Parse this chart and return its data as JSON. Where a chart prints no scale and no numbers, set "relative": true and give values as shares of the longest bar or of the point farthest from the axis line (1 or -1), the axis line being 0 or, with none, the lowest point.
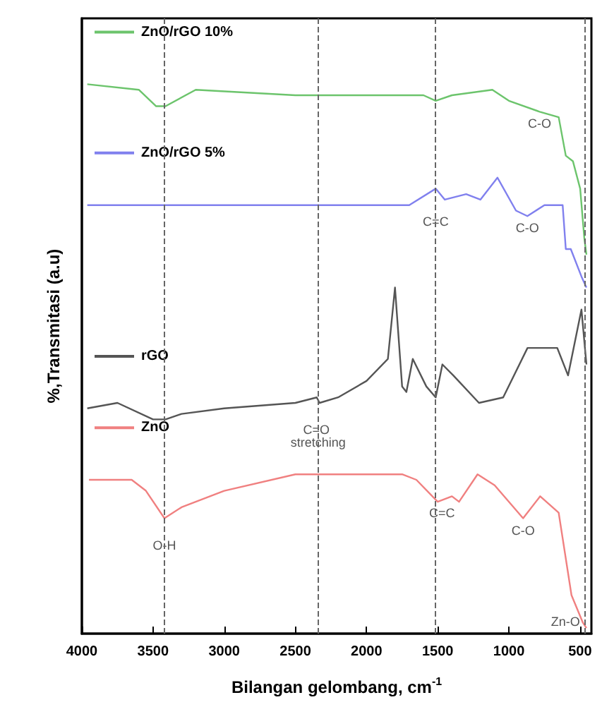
{
  "chart_data": {
    "type": "line",
    "relative": true,
    "xlabel": "Bilangan gelombang, cm$^{-1}$",
    "ylabel": "%,Transmitasi (a.u)",
    "xlim": [
      4000,
      420
    ],
    "xticks": [
      4000,
      3500,
      3000,
      2500,
      2000,
      1500,
      1000,
      500
    ],
    "marker": "none",
    "line_style": "solid",
    "grid": false,
    "legend": "top left",
    "series": [
      {
        "name": "ZnO/rGO 10%",
        "color": "#6cc46c",
        "x": [
          3962,
          3600,
          3478,
          3412,
          3200,
          2500,
          2340,
          2000,
          1600,
          1514,
          1400,
          1116,
          1000,
          784,
          650,
          600,
          550,
          499,
          470,
          455
        ],
        "values": [
          1.0,
          0.99,
          0.96,
          0.96,
          0.99,
          0.98,
          0.98,
          0.98,
          0.98,
          0.97,
          0.98,
          0.99,
          0.97,
          0.95,
          0.94,
          0.87,
          0.86,
          0.81,
          0.72,
          0.69
        ]
      },
      {
        "name": "ZnO/rGO 5%",
        "color": "#8080ee",
        "x": [
          3962,
          3000,
          2000,
          1700,
          1514,
          1450,
          1300,
          1200,
          1080,
          950,
          870,
          750,
          622,
          600,
          565,
          490,
          455
        ],
        "values": [
          0.78,
          0.78,
          0.78,
          0.78,
          0.81,
          0.79,
          0.8,
          0.79,
          0.83,
          0.77,
          0.76,
          0.78,
          0.78,
          0.7,
          0.7,
          0.65,
          0.63
        ]
      },
      {
        "name": "rGO",
        "color": "#555555",
        "x": [
          3962,
          3750,
          3500,
          3412,
          3300,
          3000,
          2500,
          2350,
          2330,
          2200,
          2000,
          1850,
          1800,
          1750,
          1720,
          1675,
          1580,
          1514,
          1467,
          1390,
          1210,
          1040,
          869,
          660,
          584,
          490,
          455
        ],
        "values": [
          0.41,
          0.42,
          0.39,
          0.39,
          0.4,
          0.41,
          0.42,
          0.43,
          0.42,
          0.43,
          0.46,
          0.5,
          0.63,
          0.45,
          0.44,
          0.5,
          0.45,
          0.43,
          0.49,
          0.47,
          0.42,
          0.43,
          0.52,
          0.52,
          0.47,
          0.59,
          0.49
        ]
      },
      {
        "name": "ZnO",
        "color": "#f08080",
        "x": [
          3950,
          3650,
          3550,
          3420,
          3300,
          3000,
          2500,
          2000,
          1750,
          1650,
          1500,
          1400,
          1350,
          1220,
          1100,
          900,
          780,
          650,
          560,
          480,
          455
        ],
        "values": [
          0.28,
          0.28,
          0.26,
          0.21,
          0.23,
          0.26,
          0.29,
          0.29,
          0.29,
          0.28,
          0.24,
          0.25,
          0.24,
          0.29,
          0.27,
          0.21,
          0.25,
          0.22,
          0.07,
          0.02,
          0.01
        ]
      }
    ],
    "ref_lines": [
      {
        "axis": "x",
        "value": 3420,
        "color": "#666666",
        "line_style": "dashed"
      },
      {
        "axis": "x",
        "value": 2340,
        "color": "#666666",
        "line_style": "dashed"
      },
      {
        "axis": "x",
        "value": 1514,
        "color": "#666666",
        "line_style": "dashed"
      },
      {
        "axis": "x",
        "value": 465,
        "color": "#666666",
        "line_style": "dashed"
      }
    ],
    "annotations": [
      {
        "text": "C-O",
        "x": 784,
        "y": 0.95
      },
      {
        "text": "C=C",
        "x": 1514,
        "y": 0.75
      },
      {
        "text": "C-O",
        "x": 870,
        "y": 0.76
      },
      {
        "text": "C=O stretching",
        "x": 2340,
        "y": 0.36
      },
      {
        "text": "O-H",
        "x": 3420,
        "y": 0.16
      },
      {
        "text": "C=C",
        "x": 1470,
        "y": 0.22
      },
      {
        "text": "C-O",
        "x": 900,
        "y": 0.21
      },
      {
        "text": "Zn-O",
        "x": 480,
        "y": 0.02
      }
    ]
  }
}
